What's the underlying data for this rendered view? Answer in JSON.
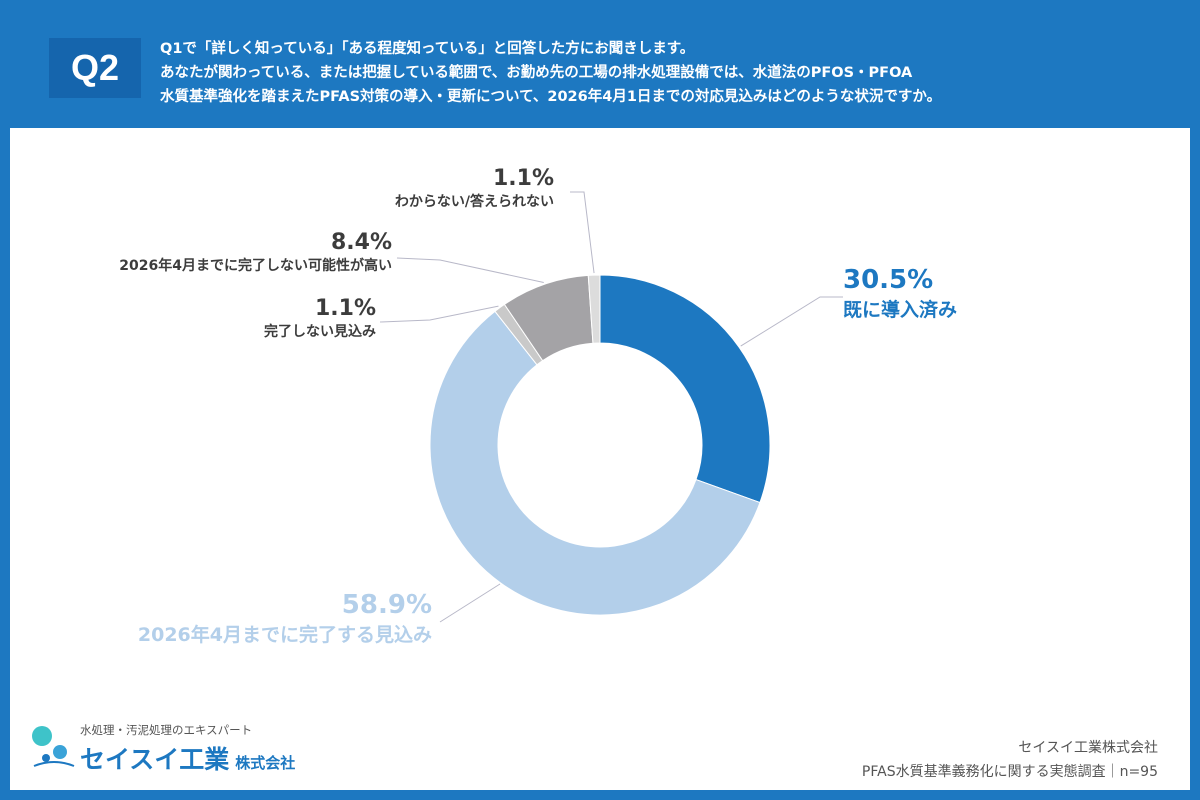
{
  "question": {
    "badge": "Q2",
    "lines": [
      "Q1で「詳しく知っている」「ある程度知っている」と回答した方にお聞きします。",
      "あなたが関わっている、または把握している範囲で、お勤め先の工場の排水処理設備では、水道法のPFOS・PFOA",
      "水質基準強化を踏まえたPFAS対策の導入・更新について、2026年4月1日までの対応見込みはどのような状況ですか。"
    ]
  },
  "chart_data": {
    "type": "pie",
    "variant": "donut",
    "slices": [
      {
        "label": "既に導入済み",
        "value": 30.5,
        "display": "30.5%",
        "color": "#1d78c1"
      },
      {
        "label": "2026年4月までに完了する見込み",
        "value": 58.9,
        "display": "58.9%",
        "color": "#b3cfea"
      },
      {
        "label": "完了しない見込み",
        "value": 1.1,
        "display": "1.1%",
        "color": "#c9c9c9"
      },
      {
        "label": "2026年4月までに完了しない可能性が高い",
        "value": 8.4,
        "display": "8.4%",
        "color": "#a4a3a6"
      },
      {
        "label": "わからない/答えられない",
        "value": 1.1,
        "display": "1.1%",
        "color": "#dcdcdc"
      }
    ]
  },
  "logo": {
    "tagline": "水処理・汚泥処理のエキスパート",
    "name": "セイスイ工業",
    "suffix": "株式会社"
  },
  "footer": {
    "company": "セイスイ工業株式会社",
    "survey": "PFAS水質基準義務化に関する実態調査｜n=95"
  }
}
